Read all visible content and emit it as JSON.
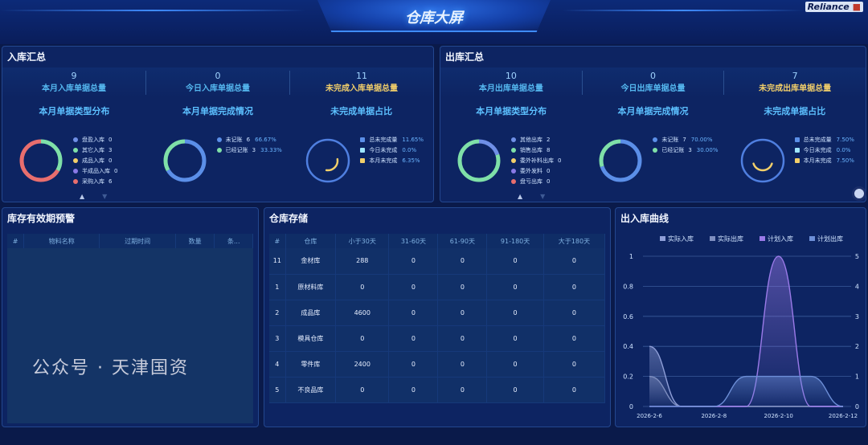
{
  "header": {
    "title": "仓库大屏",
    "logo": "Reliance"
  },
  "inbound": {
    "title": "入库汇总",
    "kpis": [
      {
        "value": "9",
        "label": "本月入库单据总量"
      },
      {
        "value": "0",
        "label": "今日入库单据总量"
      },
      {
        "value": "11",
        "label": "未完成入库单据总量"
      }
    ],
    "type_dist": {
      "title": "本月单据类型分布",
      "items": [
        {
          "label": "盘盈入库",
          "value": "0",
          "color": "#6f8fe6"
        },
        {
          "label": "其它入库",
          "value": "3",
          "color": "#7fe0a8"
        },
        {
          "label": "成品入库",
          "value": "0",
          "color": "#f2cf6a"
        },
        {
          "label": "半成品入库",
          "value": "0",
          "color": "#8a7ae6"
        },
        {
          "label": "采购入库",
          "value": "6",
          "color": "#e86e6e"
        }
      ]
    },
    "completion": {
      "title": "本月单据完成情况",
      "items": [
        {
          "label": "未记账",
          "value": "6",
          "pct": "66.67%",
          "color": "#5b8fe8"
        },
        {
          "label": "已经记账",
          "value": "3",
          "pct": "33.33%",
          "color": "#7fe0a8"
        }
      ]
    },
    "unfinished": {
      "title": "未完成单据占比",
      "items": [
        {
          "label": "总未完成量",
          "pct": "11.65%",
          "color": "#5b8fe8"
        },
        {
          "label": "今日未完成",
          "pct": "0.0%",
          "color": "#9fe6ff"
        },
        {
          "label": "本月未完成",
          "pct": "6.35%",
          "color": "#f2cf6a"
        }
      ]
    }
  },
  "outbound": {
    "title": "出库汇总",
    "kpis": [
      {
        "value": "10",
        "label": "本月出库单据总量"
      },
      {
        "value": "0",
        "label": "今日出库单据总量"
      },
      {
        "value": "7",
        "label": "未完成出库单据总量"
      }
    ],
    "type_dist": {
      "title": "本月单据类型分布",
      "items": [
        {
          "label": "其他出库",
          "value": "2",
          "color": "#6f8fe6"
        },
        {
          "label": "销售出库",
          "value": "8",
          "color": "#7fe0a8"
        },
        {
          "label": "委外补料出库",
          "value": "0",
          "color": "#f2cf6a"
        },
        {
          "label": "委外发料",
          "value": "0",
          "color": "#8a7ae6"
        },
        {
          "label": "盘亏出库",
          "value": "0",
          "color": "#e86e6e"
        }
      ]
    },
    "completion": {
      "title": "本月单据完成情况",
      "items": [
        {
          "label": "未记账",
          "value": "7",
          "pct": "70.00%",
          "color": "#5b8fe8"
        },
        {
          "label": "已经记账",
          "value": "3",
          "pct": "30.00%",
          "color": "#7fe0a8"
        }
      ]
    },
    "unfinished": {
      "title": "未完成单据占比",
      "items": [
        {
          "label": "总未完成量",
          "pct": "7.50%",
          "color": "#5b8fe8"
        },
        {
          "label": "今日未完成",
          "pct": "0.0%",
          "color": "#9fe6ff"
        },
        {
          "label": "本月未完成",
          "pct": "7.50%",
          "color": "#f2cf6a"
        }
      ]
    }
  },
  "expiry": {
    "title": "库存有效期预警",
    "columns": [
      "#",
      "物料名称",
      "过期时间",
      "数量",
      "条..."
    ],
    "rows": []
  },
  "storage": {
    "title": "仓库存储",
    "columns": [
      "#",
      "仓库",
      "小于30天",
      "31-60天",
      "61-90天",
      "91-180天",
      "大于180天"
    ],
    "rows": [
      [
        "11",
        "金材库",
        "288",
        "0",
        "0",
        "0",
        "0"
      ],
      [
        "1",
        "原材料库",
        "0",
        "0",
        "0",
        "0",
        "0"
      ],
      [
        "2",
        "成品库",
        "4600",
        "0",
        "0",
        "0",
        "0"
      ],
      [
        "3",
        "模具仓库",
        "0",
        "0",
        "0",
        "0",
        "0"
      ],
      [
        "4",
        "零件库",
        "2400",
        "0",
        "0",
        "0",
        "0"
      ],
      [
        "5",
        "不良品库",
        "0",
        "0",
        "0",
        "0",
        "0"
      ]
    ]
  },
  "curve": {
    "title": "出入库曲线"
  },
  "chart_data": {
    "type": "line",
    "x": [
      "2026-2-6",
      "2026-2-7",
      "2026-2-8",
      "2026-2-9",
      "2026-2-10",
      "2026-2-11",
      "2026-2-12"
    ],
    "xticks": [
      "2026-2-6",
      "2026-2-8",
      "2026-2-10",
      "2026-2-12"
    ],
    "ylim_left": [
      0,
      1
    ],
    "yticks_left": [
      "0",
      "0.2",
      "0.4",
      "0.6",
      "0.8",
      "1"
    ],
    "ylim_right": [
      0,
      5
    ],
    "yticks_right": [
      "0",
      "1",
      "2",
      "3",
      "4",
      "5"
    ],
    "grid": true,
    "legend": "top",
    "series": [
      {
        "name": "实际入库",
        "axis": "left",
        "color": "#8f9fd8",
        "values": [
          0.4,
          0,
          0,
          0,
          0,
          0,
          0
        ]
      },
      {
        "name": "实际出库",
        "axis": "left",
        "color": "#7f8fc0",
        "values": [
          0.2,
          0,
          0,
          0,
          0,
          0,
          0
        ]
      },
      {
        "name": "计划入库",
        "axis": "right",
        "color": "#9a7ae8",
        "values": [
          0,
          0,
          0,
          0,
          5,
          0,
          0
        ]
      },
      {
        "name": "计划出库",
        "axis": "right",
        "color": "#6d8fd8",
        "values": [
          0,
          0,
          0,
          1,
          1,
          1,
          0
        ]
      }
    ]
  },
  "watermark": "公众号 · 天津国资"
}
